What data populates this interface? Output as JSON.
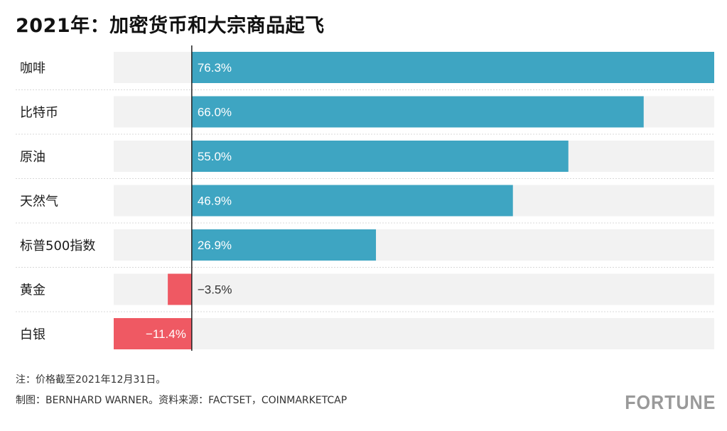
{
  "title": "2021年：加密货币和大宗商品起飞",
  "chart_data": {
    "type": "bar",
    "orientation": "horizontal",
    "categories": [
      "咖啡",
      "比特币",
      "原油",
      "天然气",
      "标普500指数",
      "黄金",
      "白银"
    ],
    "values": [
      76.3,
      66.0,
      55.0,
      46.9,
      26.9,
      -3.5,
      -11.4
    ],
    "value_labels": [
      "76.3%",
      "66.0%",
      "55.0%",
      "46.9%",
      "26.9%",
      "−3.5%",
      "−11.4%"
    ],
    "xlim": [
      -11.4,
      76.3
    ],
    "unit": "%",
    "colors": {
      "positive": "#3ea5c2",
      "negative": "#ef5963",
      "track": "#f2f2f2",
      "axis": "#222222"
    }
  },
  "notes": {
    "note": "注：价格截至2021年12月31日。",
    "credit": "制图：BERNHARD WARNER。资料来源：FACTSET，COINMARKETCAP"
  },
  "brand": "FORTUNE"
}
